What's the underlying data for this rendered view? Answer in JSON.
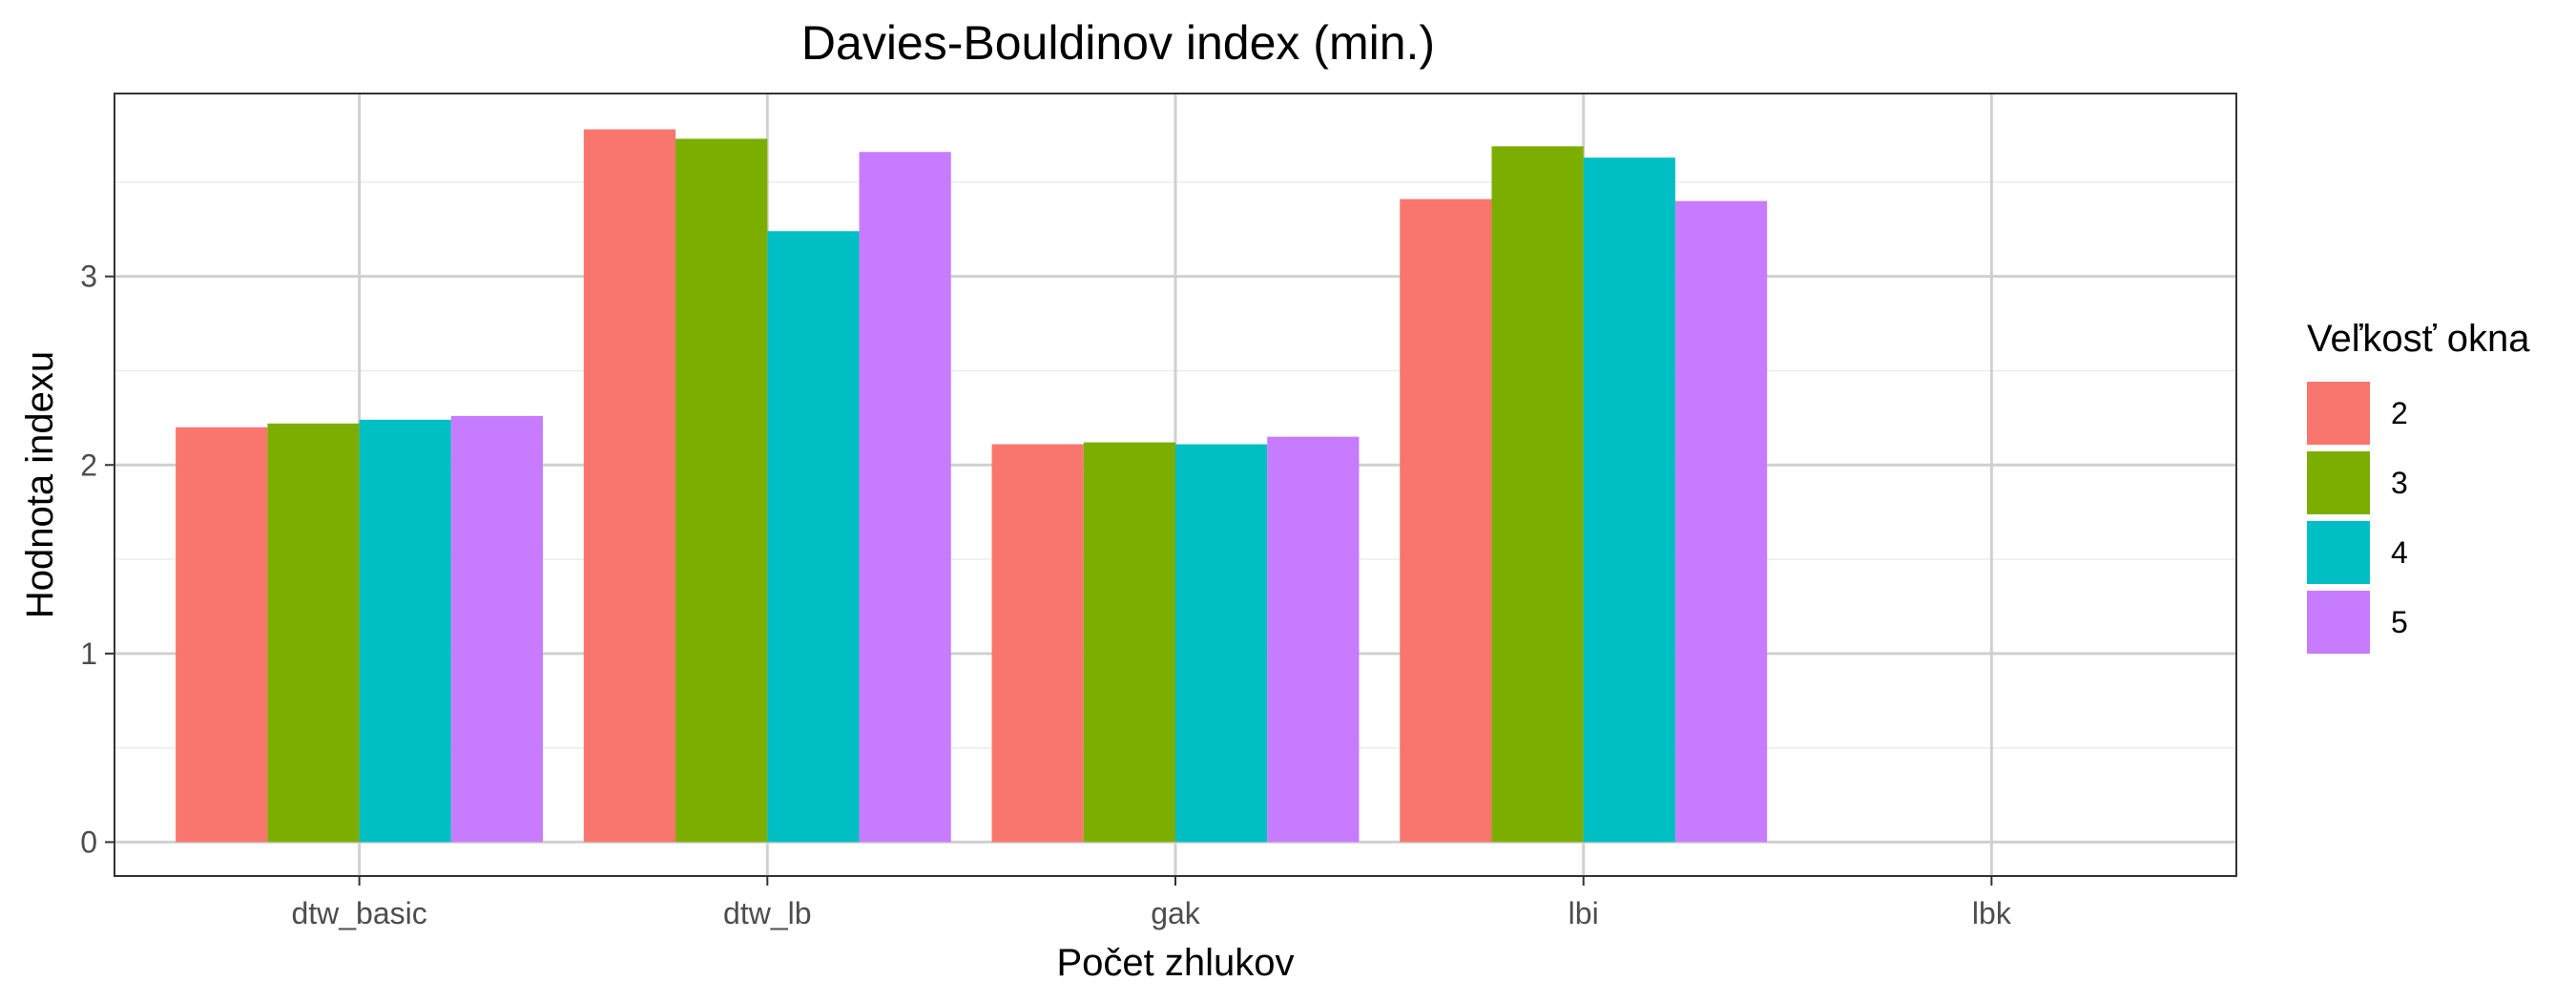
{
  "chart_data": {
    "type": "bar",
    "title": "Davies-Bouldinov index (min.)",
    "xlabel": "Počet zhlukov",
    "ylabel": "Hodnota indexu",
    "categories": [
      "dtw_basic",
      "dtw_lb",
      "gak",
      "lbi",
      "lbk"
    ],
    "series": [
      {
        "name": "2",
        "color": "#F8766D",
        "values": [
          2.2,
          3.78,
          2.11,
          3.41,
          null
        ]
      },
      {
        "name": "3",
        "color": "#7CAE00",
        "values": [
          2.22,
          3.73,
          2.12,
          3.69,
          null
        ]
      },
      {
        "name": "4",
        "color": "#00BFC4",
        "values": [
          2.24,
          3.24,
          2.11,
          3.63,
          null
        ]
      },
      {
        "name": "5",
        "color": "#C77CFF",
        "values": [
          2.26,
          3.66,
          2.15,
          3.4,
          null
        ]
      }
    ],
    "ylim": [
      -0.18,
      3.97
    ],
    "yticks": [
      0,
      1,
      2,
      3
    ],
    "grid": true,
    "legend": {
      "title": "Veľkosť okna",
      "placement": "right"
    }
  }
}
